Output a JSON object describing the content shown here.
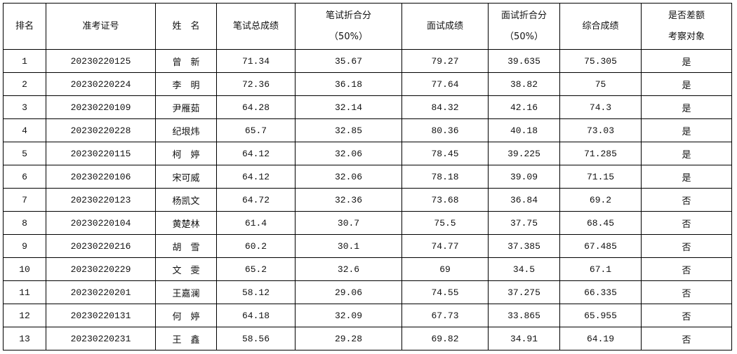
{
  "headers": {
    "rank": "排名",
    "ticket": "准考证号",
    "name": "姓　名",
    "written_total": "笔试总成绩",
    "written_weighted": "笔试折合分",
    "written_weighted_note": "（50%）",
    "interview": "面试成绩",
    "interview_weighted": "面试折合分",
    "interview_weighted_note": "（50%）",
    "overall": "综合成绩",
    "diff_inspect_1": "是否差额",
    "diff_inspect_2": "考察对象"
  },
  "rows": [
    {
      "rank": "1",
      "ticket": "20230220125",
      "name": "曾　新",
      "written_total": "71.34",
      "written_weighted": "35.67",
      "interview": "79.27",
      "interview_weighted": "39.635",
      "overall": "75.305",
      "inspect": "是"
    },
    {
      "rank": "2",
      "ticket": "20230220224",
      "name": "李　明",
      "written_total": "72.36",
      "written_weighted": "36.18",
      "interview": "77.64",
      "interview_weighted": "38.82",
      "overall": "75",
      "inspect": "是"
    },
    {
      "rank": "3",
      "ticket": "20230220109",
      "name": "尹雁茹",
      "written_total": "64.28",
      "written_weighted": "32.14",
      "interview": "84.32",
      "interview_weighted": "42.16",
      "overall": "74.3",
      "inspect": "是"
    },
    {
      "rank": "4",
      "ticket": "20230220228",
      "name": "纪垠炜",
      "written_total": "65.7",
      "written_weighted": "32.85",
      "interview": "80.36",
      "interview_weighted": "40.18",
      "overall": "73.03",
      "inspect": "是"
    },
    {
      "rank": "5",
      "ticket": "20230220115",
      "name": "柯　婷",
      "written_total": "64.12",
      "written_weighted": "32.06",
      "interview": "78.45",
      "interview_weighted": "39.225",
      "overall": "71.285",
      "inspect": "是"
    },
    {
      "rank": "6",
      "ticket": "20230220106",
      "name": "宋可威",
      "written_total": "64.12",
      "written_weighted": "32.06",
      "interview": "78.18",
      "interview_weighted": "39.09",
      "overall": "71.15",
      "inspect": "是"
    },
    {
      "rank": "7",
      "ticket": "20230220123",
      "name": "杨凯文",
      "written_total": "64.72",
      "written_weighted": "32.36",
      "interview": "73.68",
      "interview_weighted": "36.84",
      "overall": "69.2",
      "inspect": "否"
    },
    {
      "rank": "8",
      "ticket": "20230220104",
      "name": "黄楚林",
      "written_total": "61.4",
      "written_weighted": "30.7",
      "interview": "75.5",
      "interview_weighted": "37.75",
      "overall": "68.45",
      "inspect": "否"
    },
    {
      "rank": "9",
      "ticket": "20230220216",
      "name": "胡　雪",
      "written_total": "60.2",
      "written_weighted": "30.1",
      "interview": "74.77",
      "interview_weighted": "37.385",
      "overall": "67.485",
      "inspect": "否"
    },
    {
      "rank": "10",
      "ticket": "20230220229",
      "name": "文　雯",
      "written_total": "65.2",
      "written_weighted": "32.6",
      "interview": "69",
      "interview_weighted": "34.5",
      "overall": "67.1",
      "inspect": "否"
    },
    {
      "rank": "11",
      "ticket": "20230220201",
      "name": "王嘉澜",
      "written_total": "58.12",
      "written_weighted": "29.06",
      "interview": "74.55",
      "interview_weighted": "37.275",
      "overall": "66.335",
      "inspect": "否"
    },
    {
      "rank": "12",
      "ticket": "20230220131",
      "name": "何　婷",
      "written_total": "64.18",
      "written_weighted": "32.09",
      "interview": "67.73",
      "interview_weighted": "33.865",
      "overall": "65.955",
      "inspect": "否"
    },
    {
      "rank": "13",
      "ticket": "20230220231",
      "name": "王　鑫",
      "written_total": "58.56",
      "written_weighted": "29.28",
      "interview": "69.82",
      "interview_weighted": "34.91",
      "overall": "64.19",
      "inspect": "否"
    }
  ]
}
